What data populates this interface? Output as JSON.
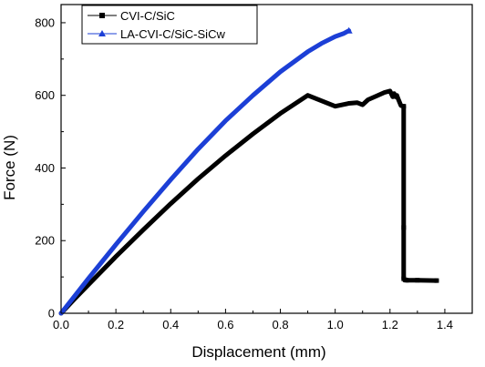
{
  "chart_data": {
    "type": "line",
    "xlabel": "Displacement (mm)",
    "ylabel": "Force (N)",
    "xlim": [
      0.0,
      1.5
    ],
    "ylim": [
      0,
      850
    ],
    "x_ticks": [
      "0.0",
      "0.2",
      "0.4",
      "0.6",
      "0.8",
      "1.0",
      "1.2",
      "1.4"
    ],
    "y_ticks": [
      "0",
      "200",
      "400",
      "600",
      "800"
    ],
    "x_tick_values": [
      0.0,
      0.2,
      0.4,
      0.6,
      0.8,
      1.0,
      1.2,
      1.4
    ],
    "y_tick_values": [
      0,
      200,
      400,
      600,
      800
    ],
    "grid": false,
    "legend_position": "top-left",
    "series": [
      {
        "name": "CVI-C/SiC",
        "color": "#000000",
        "marker": "square",
        "x": [
          0.0,
          0.05,
          0.1,
          0.2,
          0.3,
          0.4,
          0.5,
          0.6,
          0.7,
          0.8,
          0.9,
          1.0,
          1.05,
          1.08,
          1.1,
          1.12,
          1.15,
          1.18,
          1.2,
          1.21,
          1.215,
          1.22,
          1.225,
          1.23,
          1.24,
          1.25,
          1.25,
          1.25,
          1.255,
          1.26,
          1.3,
          1.37
        ],
        "y": [
          0,
          40,
          79,
          156,
          230,
          302,
          370,
          434,
          494,
          550,
          600,
          570,
          578,
          580,
          574,
          588,
          598,
          608,
          612,
          596,
          605,
          596,
          600,
          590,
          572,
          570,
          236,
          95,
          92,
          91,
          91,
          90
        ]
      },
      {
        "name": "LA-CVI-C/SiC-SiCw",
        "color": "#1c3fd6",
        "marker": "triangle",
        "x": [
          0.0,
          0.05,
          0.1,
          0.2,
          0.3,
          0.4,
          0.5,
          0.6,
          0.7,
          0.8,
          0.9,
          0.95,
          1.0,
          1.03,
          1.05
        ],
        "y": [
          0,
          48,
          96,
          189,
          280,
          368,
          452,
          530,
          600,
          665,
          720,
          743,
          762,
          770,
          778
        ]
      }
    ]
  }
}
